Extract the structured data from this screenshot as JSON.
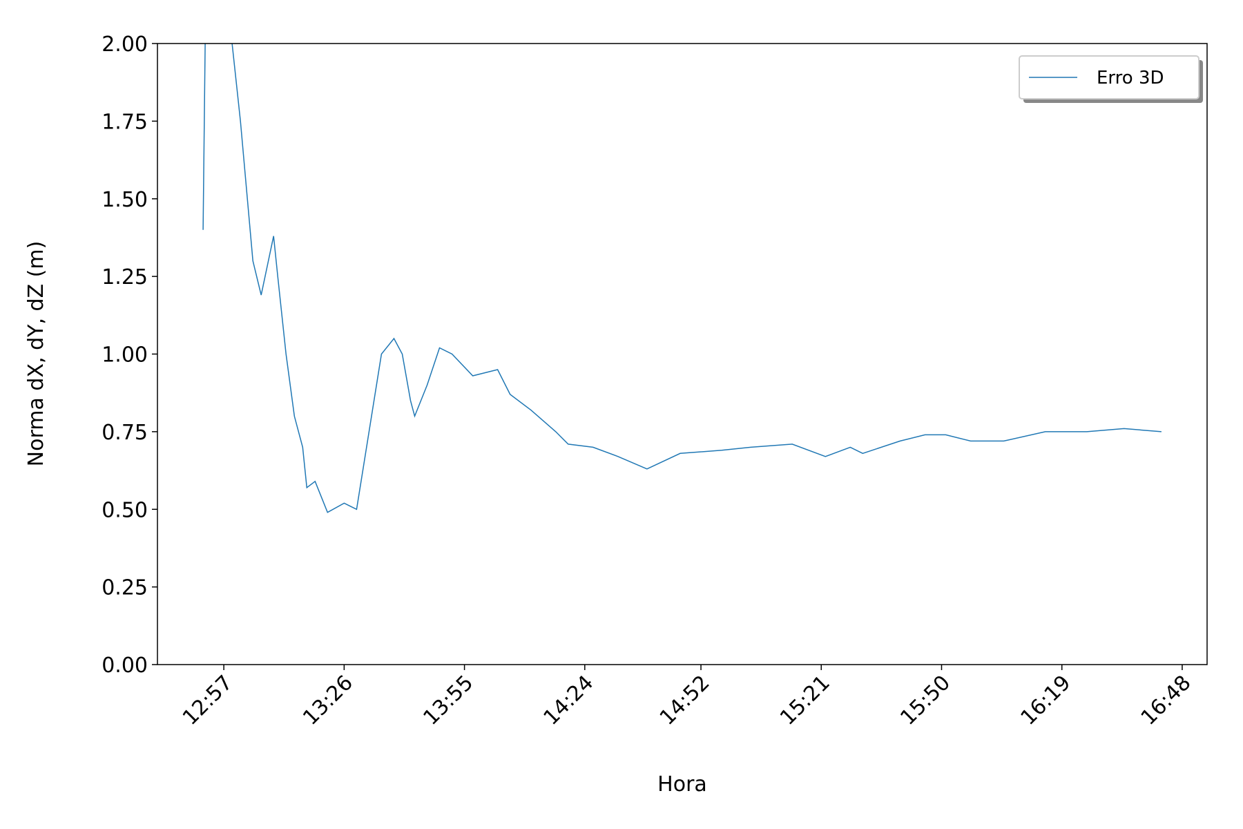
{
  "chart_data": {
    "type": "line",
    "xlabel": "Hora",
    "ylabel": "Norma dX, dY, dZ (m)",
    "x": [
      "12:52",
      "12:53",
      "12:58",
      "12:59",
      "13:01",
      "13:03",
      "13:04",
      "13:06",
      "13:09",
      "13:10",
      "13:12",
      "13:14",
      "13:16",
      "13:17",
      "13:19",
      "13:22",
      "13:26",
      "13:29",
      "13:32",
      "13:35",
      "13:38",
      "13:40",
      "13:42",
      "13:43",
      "13:46",
      "13:49",
      "13:52",
      "13:57",
      "14:03",
      "14:06",
      "14:11",
      "14:17",
      "14:20",
      "14:26",
      "14:32",
      "14:39",
      "14:47",
      "14:57",
      "15:04",
      "15:14",
      "15:22",
      "15:28",
      "15:31",
      "15:40",
      "15:46",
      "15:51",
      "15:57",
      "16:05",
      "16:15",
      "16:25",
      "16:34",
      "16:43"
    ],
    "series": [
      {
        "name": "Erro 3D",
        "color": "#1f77b4",
        "values": [
          1.4,
          2.6,
          2.1,
          2.0,
          1.75,
          1.45,
          1.3,
          1.19,
          1.38,
          1.25,
          1.0,
          0.8,
          0.7,
          0.57,
          0.59,
          0.49,
          0.52,
          0.5,
          0.75,
          1.0,
          1.05,
          1.0,
          0.85,
          0.8,
          0.9,
          1.02,
          1.0,
          0.93,
          0.95,
          0.87,
          0.82,
          0.75,
          0.71,
          0.7,
          0.67,
          0.63,
          0.68,
          0.69,
          0.7,
          0.71,
          0.67,
          0.7,
          0.68,
          0.72,
          0.74,
          0.74,
          0.72,
          0.72,
          0.75,
          0.75,
          0.76,
          0.75
        ]
      }
    ],
    "xlim": [
      "12:41",
      "16:54"
    ],
    "xticks": [
      "12:57",
      "13:26",
      "13:55",
      "14:24",
      "14:52",
      "15:21",
      "15:50",
      "16:19",
      "16:48"
    ],
    "ylim": [
      0,
      2
    ],
    "yticks": [
      {
        "value": 0,
        "label": "0.00"
      },
      {
        "value": 0.25,
        "label": "0.25"
      },
      {
        "value": 0.5,
        "label": "0.50"
      },
      {
        "value": 0.75,
        "label": "0.75"
      },
      {
        "value": 1,
        "label": "1.00"
      },
      {
        "value": 1.25,
        "label": "1.25"
      },
      {
        "value": 1.5,
        "label": "1.50"
      },
      {
        "value": 1.75,
        "label": "1.75"
      },
      {
        "value": 2,
        "label": "2.00"
      }
    ],
    "legend": "upper right"
  }
}
